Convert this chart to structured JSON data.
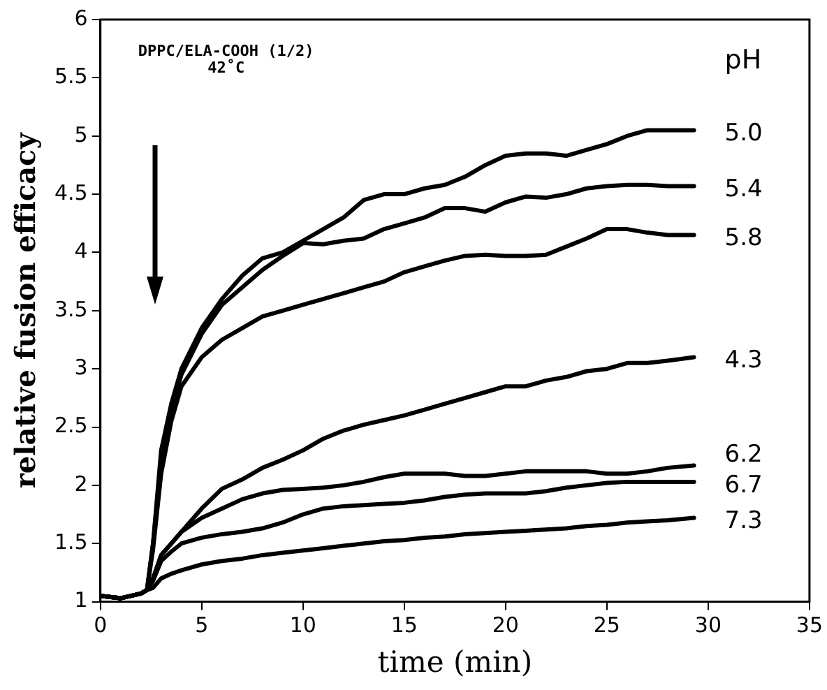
{
  "chart_data": {
    "type": "line",
    "xlabel": "time (min)",
    "ylabel": "relative fusion efficacy",
    "legend_title": "pH",
    "annotations": [
      "DPPC/ELA-COOH (1/2)",
      "42˚C"
    ],
    "x": [
      0,
      1,
      2,
      2.3,
      2.6,
      3,
      3.5,
      4,
      5,
      6,
      7,
      8,
      9,
      10,
      11,
      12,
      13,
      14,
      15,
      16,
      17,
      18,
      19,
      20,
      21,
      22,
      23,
      24,
      25,
      26,
      27,
      28,
      29.3
    ],
    "xlim": [
      0,
      35
    ],
    "xticks": [
      0,
      5,
      10,
      15,
      20,
      25,
      30,
      35
    ],
    "ylim": [
      1,
      6
    ],
    "yticks": [
      1,
      1.5,
      2,
      2.5,
      3,
      3.5,
      4,
      4.5,
      5,
      5.5,
      6
    ],
    "grid": false,
    "legend": false,
    "marker": "none",
    "line_style": "solid",
    "series": [
      {
        "name": "5.0",
        "color": "#000000",
        "values": [
          1.05,
          1.03,
          1.07,
          1.1,
          1.5,
          2.3,
          2.7,
          3.0,
          3.35,
          3.6,
          3.8,
          3.95,
          4.0,
          4.1,
          4.2,
          4.3,
          4.45,
          4.5,
          4.5,
          4.55,
          4.58,
          4.65,
          4.75,
          4.83,
          4.85,
          4.85,
          4.83,
          4.88,
          4.93,
          5.0,
          5.05,
          5.05,
          5.05
        ]
      },
      {
        "name": "5.4",
        "color": "#000000",
        "values": [
          1.05,
          1.03,
          1.07,
          1.1,
          1.5,
          2.2,
          2.65,
          2.95,
          3.3,
          3.55,
          3.7,
          3.85,
          3.97,
          4.08,
          4.07,
          4.1,
          4.12,
          4.2,
          4.25,
          4.3,
          4.38,
          4.38,
          4.35,
          4.43,
          4.48,
          4.47,
          4.5,
          4.55,
          4.57,
          4.58,
          4.58,
          4.57,
          4.57
        ]
      },
      {
        "name": "5.8",
        "color": "#000000",
        "values": [
          1.05,
          1.03,
          1.07,
          1.1,
          1.45,
          2.1,
          2.55,
          2.85,
          3.1,
          3.25,
          3.35,
          3.45,
          3.5,
          3.55,
          3.6,
          3.65,
          3.7,
          3.75,
          3.83,
          3.88,
          3.93,
          3.97,
          3.98,
          3.97,
          3.97,
          3.98,
          4.05,
          4.12,
          4.2,
          4.2,
          4.17,
          4.15,
          4.15
        ]
      },
      {
        "name": "4.3",
        "color": "#000000",
        "values": [
          1.05,
          1.03,
          1.07,
          1.1,
          1.2,
          1.4,
          1.5,
          1.6,
          1.8,
          1.97,
          2.05,
          2.15,
          2.22,
          2.3,
          2.4,
          2.47,
          2.52,
          2.56,
          2.6,
          2.65,
          2.7,
          2.75,
          2.8,
          2.85,
          2.85,
          2.9,
          2.93,
          2.98,
          3.0,
          3.05,
          3.05,
          3.07,
          3.1
        ]
      },
      {
        "name": "6.2",
        "color": "#000000",
        "values": [
          1.05,
          1.03,
          1.07,
          1.1,
          1.2,
          1.4,
          1.5,
          1.6,
          1.72,
          1.8,
          1.88,
          1.93,
          1.96,
          1.97,
          1.98,
          2.0,
          2.03,
          2.07,
          2.1,
          2.1,
          2.1,
          2.08,
          2.08,
          2.1,
          2.12,
          2.12,
          2.12,
          2.12,
          2.1,
          2.1,
          2.12,
          2.15,
          2.17
        ]
      },
      {
        "name": "6.7",
        "color": "#000000",
        "values": [
          1.05,
          1.03,
          1.07,
          1.1,
          1.18,
          1.35,
          1.43,
          1.5,
          1.55,
          1.58,
          1.6,
          1.63,
          1.68,
          1.75,
          1.8,
          1.82,
          1.83,
          1.84,
          1.85,
          1.87,
          1.9,
          1.92,
          1.93,
          1.93,
          1.93,
          1.95,
          1.98,
          2.0,
          2.02,
          2.03,
          2.03,
          2.03,
          2.03
        ]
      },
      {
        "name": "7.3",
        "color": "#000000",
        "values": [
          1.05,
          1.03,
          1.07,
          1.1,
          1.12,
          1.2,
          1.24,
          1.27,
          1.32,
          1.35,
          1.37,
          1.4,
          1.42,
          1.44,
          1.46,
          1.48,
          1.5,
          1.52,
          1.53,
          1.55,
          1.56,
          1.58,
          1.59,
          1.6,
          1.61,
          1.62,
          1.63,
          1.65,
          1.66,
          1.68,
          1.69,
          1.7,
          1.72
        ]
      }
    ]
  }
}
